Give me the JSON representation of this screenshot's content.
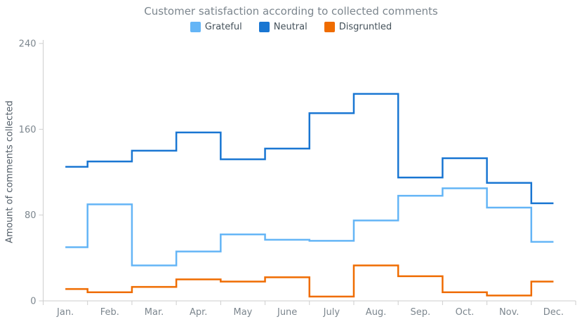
{
  "style": {
    "background": "#ffffff",
    "title_color": "#7c868e",
    "legend_text_color": "#44515a",
    "axis_line_color": "#cecece",
    "tick_label_color": "#7c868e",
    "y_axis_title_color": "#545f69"
  },
  "chart_data": {
    "type": "line",
    "subtype": "step",
    "title": "Customer satisfaction according to collected comments",
    "xlabel": "",
    "ylabel": "Amount of comments collected",
    "categories": [
      "Jan.",
      "Feb.",
      "Mar.",
      "Apr.",
      "May",
      "June",
      "July",
      "Aug.",
      "Sep.",
      "Oct.",
      "Nov.",
      "Dec."
    ],
    "series": [
      {
        "name": "Grateful",
        "color": "#64b5f6",
        "values": [
          50,
          90,
          33,
          46,
          62,
          57,
          56,
          75,
          98,
          105,
          87,
          55
        ]
      },
      {
        "name": "Neutral",
        "color": "#1976d2",
        "values": [
          125,
          130,
          140,
          157,
          132,
          142,
          175,
          193,
          115,
          133,
          110,
          91
        ]
      },
      {
        "name": "Disgruntled",
        "color": "#ef6c00",
        "values": [
          11,
          8,
          13,
          20,
          18,
          22,
          4,
          33,
          23,
          8,
          5,
          18
        ]
      }
    ],
    "ylim": [
      0,
      240
    ],
    "yticks": [
      0,
      80,
      160,
      240
    ],
    "grid": false,
    "legend_position": "top"
  }
}
